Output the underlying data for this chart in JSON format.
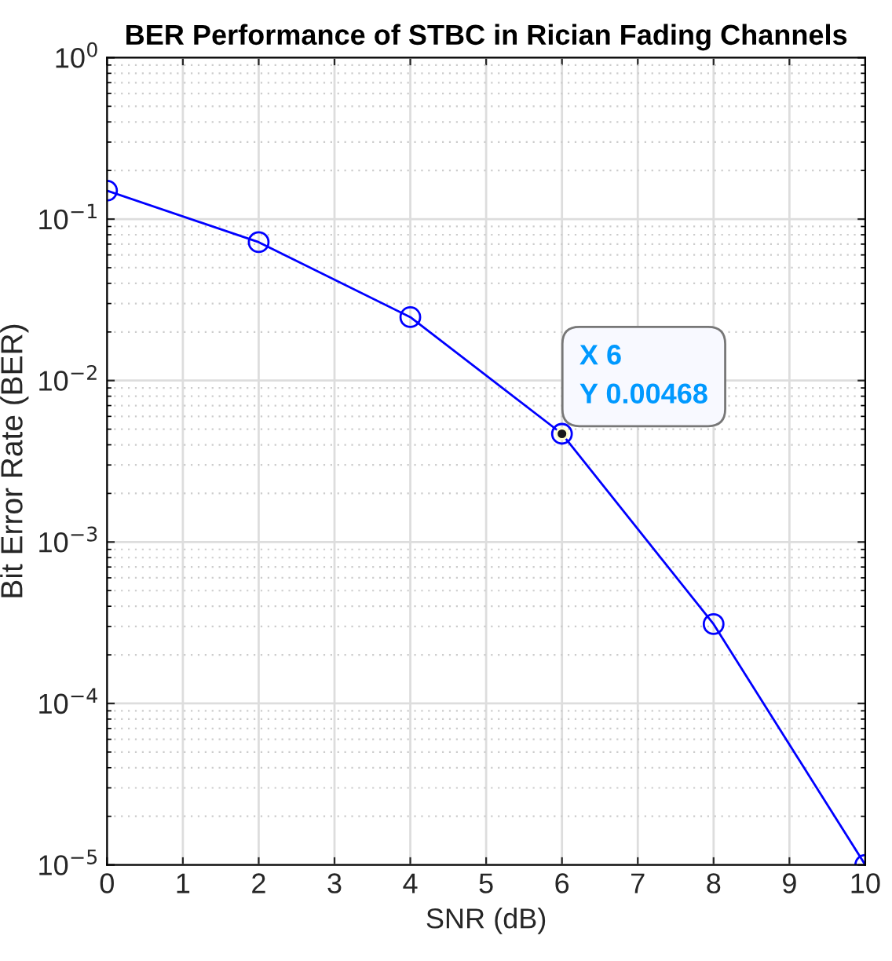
{
  "chart_data": {
    "type": "line",
    "title": "BER Performance of STBC in Rician Fading Channels",
    "xlabel": "SNR (dB)",
    "ylabel": "Bit Error Rate (BER)",
    "x": [
      0,
      2,
      4,
      6,
      8,
      10
    ],
    "series": [
      {
        "color": "#0000ff",
        "values": [
          0.15,
          0.072,
          0.0247,
          0.00468,
          0.00031,
          1e-05
        ]
      }
    ],
    "marker": "circle",
    "line_style": "solid",
    "log": "y",
    "grid": true,
    "xlim": [
      0,
      10
    ],
    "xticks": [
      0,
      1,
      2,
      3,
      4,
      5,
      6,
      7,
      8,
      9,
      10
    ],
    "ylim": [
      1e-05,
      1
    ],
    "yticks": [
      {
        "value": 1e-05,
        "label": "10$^{−5}$"
      },
      {
        "value": 0.0001,
        "label": "10$^{−4}$"
      },
      {
        "value": 0.001,
        "label": "10$^{−3}$"
      },
      {
        "value": 0.01,
        "label": "10$^{−2}$"
      },
      {
        "value": 0.1,
        "label": "10$^{−1}$"
      },
      {
        "value": 1,
        "label": "10$^{0}$"
      }
    ],
    "annotations": [
      {
        "text": "X 6\nY 0.00468",
        "x": 6,
        "y": 0.00468
      }
    ]
  }
}
